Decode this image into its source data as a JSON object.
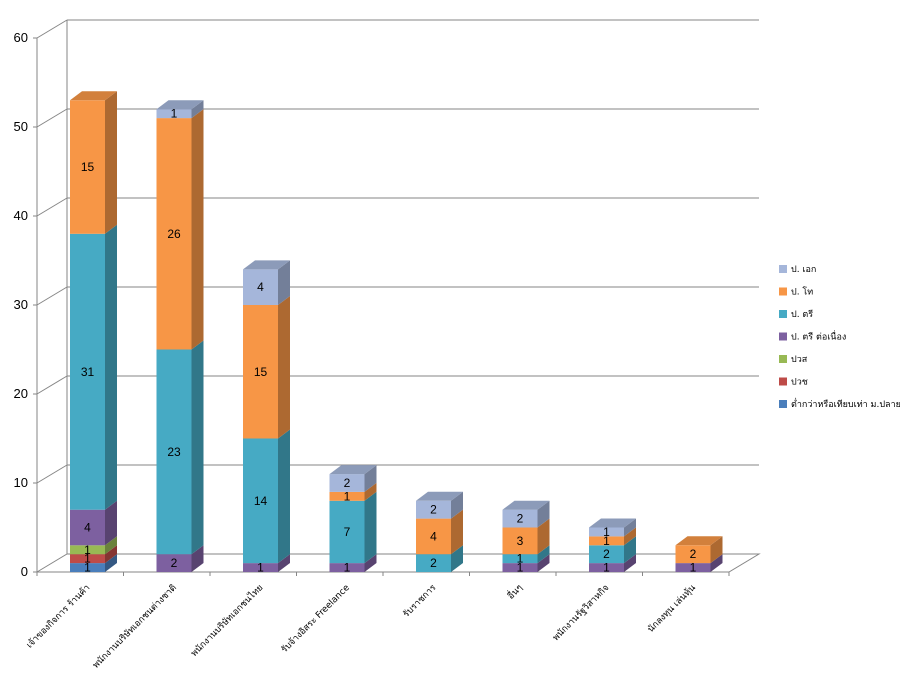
{
  "chart_data": {
    "type": "bar",
    "stacked": true,
    "three_d": true,
    "categories": [
      "เจ้าของกิจการ ร้านค้า",
      "พนักงานบริษัทเอกชนต่างชาติ",
      "พนักงานบริษัทเอกชนไทย",
      "รับจ้างอิสระ Freelance",
      "รับราชการ",
      "อื่นๆ",
      "พนักงานรัฐวิสาหกิจ",
      "นักลงทุน เล่นหุ้น"
    ],
    "series": [
      {
        "name": "ต่ำกว่าหรือเทียบเท่า ม.ปลาย",
        "color": "#4a7ebb",
        "values": [
          1,
          0,
          0,
          0,
          0,
          0,
          0,
          0
        ]
      },
      {
        "name": "ปวช",
        "color": "#be4b48",
        "values": [
          1,
          0,
          0,
          0,
          0,
          0,
          0,
          0
        ]
      },
      {
        "name": "ปวส",
        "color": "#98b954",
        "values": [
          1,
          0,
          0,
          0,
          0,
          0,
          0,
          0
        ]
      },
      {
        "name": "ป. ตรี ต่อเนื่อง",
        "color": "#7d60a0",
        "values": [
          4,
          2,
          1,
          1,
          0,
          1,
          1,
          1
        ]
      },
      {
        "name": "ป. ตรี",
        "color": "#46aac4",
        "values": [
          31,
          23,
          14,
          7,
          2,
          1,
          2,
          0
        ]
      },
      {
        "name": "ป. โท",
        "color": "#f79646",
        "values": [
          15,
          26,
          15,
          1,
          4,
          3,
          1,
          2
        ]
      },
      {
        "name": "ป. เอก",
        "color": "#a5b6da",
        "values": [
          0,
          1,
          4,
          2,
          2,
          2,
          1,
          0
        ]
      }
    ],
    "ylim": [
      0,
      60
    ],
    "yticks": [
      "0",
      "10",
      "20",
      "30",
      "40",
      "50",
      "60"
    ],
    "grid": true,
    "legend_position": "right",
    "xlabel": "",
    "ylabel": "",
    "title": ""
  }
}
